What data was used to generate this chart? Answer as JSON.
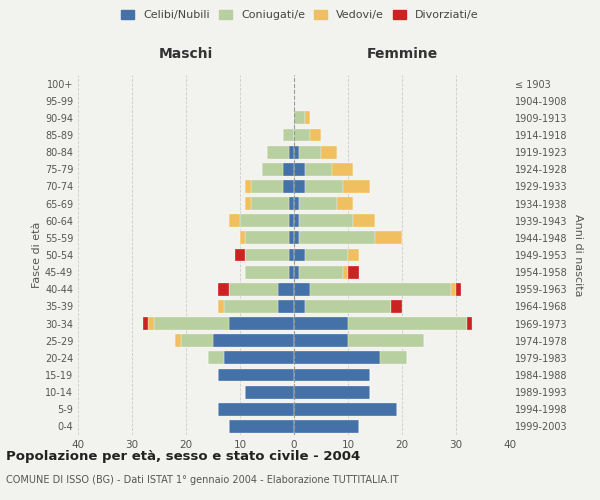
{
  "age_groups": [
    "0-4",
    "5-9",
    "10-14",
    "15-19",
    "20-24",
    "25-29",
    "30-34",
    "35-39",
    "40-44",
    "45-49",
    "50-54",
    "55-59",
    "60-64",
    "65-69",
    "70-74",
    "75-79",
    "80-84",
    "85-89",
    "90-94",
    "95-99",
    "100+"
  ],
  "birth_years": [
    "1999-2003",
    "1994-1998",
    "1989-1993",
    "1984-1988",
    "1979-1983",
    "1974-1978",
    "1969-1973",
    "1964-1968",
    "1959-1963",
    "1954-1958",
    "1949-1953",
    "1944-1948",
    "1939-1943",
    "1934-1938",
    "1929-1933",
    "1924-1928",
    "1919-1923",
    "1914-1918",
    "1909-1913",
    "1904-1908",
    "≤ 1903"
  ],
  "colors": {
    "celibi": "#4472a8",
    "coniugati": "#b8cfa0",
    "vedovi": "#f0c060",
    "divorziati": "#cc2222"
  },
  "maschi": {
    "celibi": [
      12,
      14,
      9,
      14,
      13,
      15,
      12,
      3,
      3,
      1,
      1,
      1,
      1,
      1,
      2,
      2,
      1,
      0,
      0,
      0,
      0
    ],
    "coniugati": [
      0,
      0,
      0,
      0,
      3,
      6,
      14,
      10,
      9,
      8,
      8,
      8,
      9,
      7,
      6,
      4,
      4,
      2,
      0,
      0,
      0
    ],
    "vedovi": [
      0,
      0,
      0,
      0,
      0,
      1,
      1,
      1,
      0,
      0,
      0,
      1,
      2,
      1,
      1,
      0,
      0,
      0,
      0,
      0,
      0
    ],
    "divorziati": [
      0,
      0,
      0,
      0,
      0,
      0,
      1,
      0,
      2,
      0,
      2,
      0,
      0,
      0,
      0,
      0,
      0,
      0,
      0,
      0,
      0
    ]
  },
  "femmine": {
    "celibi": [
      12,
      19,
      14,
      14,
      16,
      10,
      10,
      2,
      3,
      1,
      2,
      1,
      1,
      1,
      2,
      2,
      1,
      0,
      0,
      0,
      0
    ],
    "coniugati": [
      0,
      0,
      0,
      0,
      5,
      14,
      22,
      16,
      26,
      8,
      8,
      14,
      10,
      7,
      7,
      5,
      4,
      3,
      2,
      0,
      0
    ],
    "vedovi": [
      0,
      0,
      0,
      0,
      0,
      0,
      0,
      0,
      1,
      1,
      2,
      5,
      4,
      3,
      5,
      4,
      3,
      2,
      1,
      0,
      0
    ],
    "divorziati": [
      0,
      0,
      0,
      0,
      0,
      0,
      1,
      2,
      1,
      2,
      0,
      0,
      0,
      0,
      0,
      0,
      0,
      0,
      0,
      0,
      0
    ]
  },
  "title": "Popolazione per età, sesso e stato civile - 2004",
  "subtitle": "COMUNE DI ISSO (BG) - Dati ISTAT 1° gennaio 2004 - Elaborazione TUTTITALIA.IT",
  "xlabel_left": "Maschi",
  "xlabel_right": "Femmine",
  "ylabel_left": "Fasce di età",
  "ylabel_right": "Anni di nascita",
  "xlim": 40,
  "legend_labels": [
    "Celibi/Nubili",
    "Coniugati/e",
    "Vedovi/e",
    "Divorziati/e"
  ],
  "background_color": "#f2f2ee"
}
